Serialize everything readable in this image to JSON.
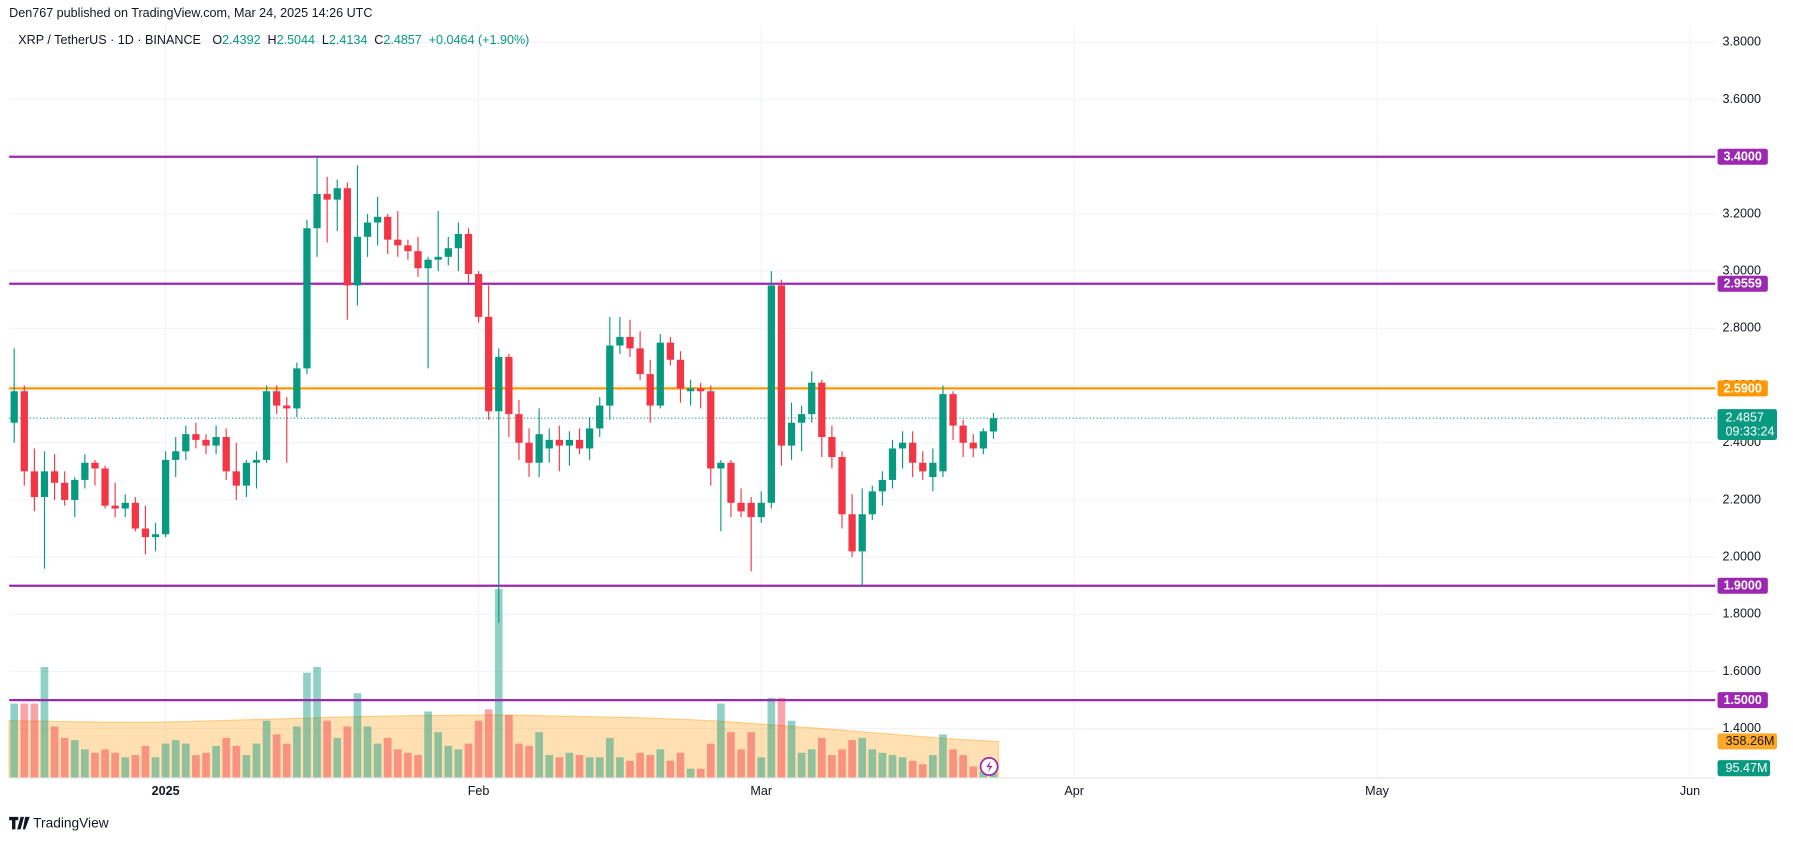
{
  "header": "Den767 published on TradingView.com, Mar 24, 2025 14:26 UTC",
  "logo": "TradingView",
  "chart_data": {
    "type": "candlestick",
    "title": "XRP / TetherUS · 1D · BINANCE",
    "legend_keys": [
      "O",
      "H",
      "L",
      "C"
    ],
    "change": "+0.0464 (+1.90%)",
    "countdown": "09:33:24",
    "categories": [
      null,
      null,
      null,
      null,
      null,
      null,
      null,
      null,
      null,
      null,
      null,
      null,
      null,
      null,
      null,
      "2025",
      null,
      null,
      null,
      null,
      null,
      null,
      null,
      null,
      null,
      null,
      null,
      null,
      null,
      null,
      null,
      null,
      null,
      null,
      null,
      null,
      null,
      null,
      null,
      null,
      null,
      null,
      null,
      null,
      null,
      null,
      "Feb",
      null,
      null,
      null,
      null,
      null,
      null,
      null,
      null,
      null,
      null,
      null,
      null,
      null,
      null,
      null,
      null,
      null,
      null,
      null,
      null,
      null,
      null,
      null,
      null,
      null,
      null,
      null,
      "Mar",
      null,
      null,
      null,
      null,
      null,
      null,
      null,
      null,
      null,
      null,
      null,
      null,
      null,
      null,
      null,
      null,
      null,
      null,
      null,
      null,
      null,
      null,
      null,
      null,
      null,
      null,
      null,
      null,
      null,
      null,
      "Apr",
      null,
      null,
      null,
      null,
      null,
      null,
      null,
      null,
      null,
      null,
      null,
      null,
      null,
      null,
      null,
      null,
      null,
      null,
      null,
      null,
      null,
      null,
      null,
      null,
      null,
      null,
      null,
      null,
      null,
      "May",
      null,
      null,
      null,
      null,
      null,
      null,
      null,
      null,
      null,
      null,
      null,
      null,
      null,
      null,
      null,
      null,
      null,
      null,
      null,
      null,
      null,
      null,
      null,
      null,
      null,
      null,
      null,
      null,
      null,
      null,
      "Jun",
      null,
      null
    ],
    "open": [
      2.47,
      2.58,
      2.3,
      2.21,
      2.3,
      2.26,
      2.2,
      2.27,
      2.33,
      2.31,
      2.18,
      2.17,
      2.19,
      2.1,
      2.07,
      2.08,
      2.34,
      2.37,
      2.43,
      2.41,
      2.39,
      2.42,
      2.3,
      2.25,
      2.33,
      2.34,
      2.58,
      2.53,
      2.52,
      2.66,
      3.15,
      3.27,
      3.25,
      3.29,
      2.95,
      3.12,
      3.17,
      3.19,
      3.11,
      3.09,
      3.07,
      3.01,
      3.04,
      3.05,
      3.08,
      3.13,
      2.99,
      2.84,
      2.51,
      2.7,
      2.5,
      2.4,
      2.33,
      2.38,
      2.41,
      2.39,
      2.41,
      2.38,
      2.45,
      2.53,
      2.74,
      2.77,
      2.73,
      2.64,
      2.53,
      2.75,
      2.69,
      2.58,
      2.59,
      2.58,
      2.31,
      2.33,
      2.19,
      2.19,
      2.14,
      2.19,
      2.95,
      2.39,
      2.47,
      2.5,
      2.61,
      2.42,
      2.35,
      2.15,
      2.02,
      2.15,
      2.23,
      2.27,
      2.38,
      2.4,
      2.33,
      2.28,
      2.3,
      2.57,
      2.46,
      2.4,
      2.38,
      2.4392,
      null,
      null,
      null,
      null,
      null,
      null,
      null,
      null,
      null,
      null,
      null,
      null,
      null,
      null,
      null,
      null,
      null,
      null,
      null,
      null,
      null,
      null,
      null,
      null,
      null,
      null,
      null,
      null,
      null,
      null,
      null,
      null,
      null,
      null,
      null,
      null,
      null,
      null,
      null,
      null,
      null,
      null,
      null,
      null,
      null,
      null,
      null,
      null,
      null,
      null,
      null,
      null,
      null,
      null,
      null,
      null,
      null,
      null,
      null,
      null,
      null,
      null,
      null,
      null,
      null,
      null,
      null,
      null,
      null,
      null,
      null
    ],
    "high": [
      2.73,
      2.6,
      2.38,
      2.37,
      2.36,
      2.3,
      2.28,
      2.36,
      2.34,
      2.32,
      2.26,
      2.22,
      2.21,
      2.18,
      2.12,
      2.37,
      2.42,
      2.46,
      2.47,
      2.43,
      2.46,
      2.45,
      2.4,
      2.34,
      2.37,
      2.6,
      2.6,
      2.56,
      2.68,
      3.18,
      3.4,
      3.33,
      3.32,
      3.31,
      3.37,
      3.2,
      3.26,
      3.2,
      3.21,
      3.11,
      3.12,
      3.05,
      3.21,
      3.12,
      3.17,
      3.15,
      3.0,
      2.95,
      2.73,
      2.71,
      2.55,
      2.45,
      2.52,
      2.45,
      2.46,
      2.44,
      2.45,
      2.49,
      2.56,
      2.84,
      2.84,
      2.83,
      2.79,
      2.69,
      2.78,
      2.77,
      2.72,
      2.62,
      2.61,
      2.6,
      2.34,
      2.34,
      2.24,
      2.21,
      2.23,
      3.0,
      2.97,
      2.54,
      2.53,
      2.65,
      2.62,
      2.46,
      2.37,
      2.22,
      2.24,
      2.25,
      2.3,
      2.41,
      2.44,
      2.44,
      2.37,
      2.38,
      2.6,
      2.58,
      2.48,
      2.43,
      2.45,
      2.5044,
      null,
      null,
      null,
      null,
      null,
      null,
      null,
      null,
      null,
      null,
      null,
      null,
      null,
      null,
      null,
      null,
      null,
      null,
      null,
      null,
      null,
      null,
      null,
      null,
      null,
      null,
      null,
      null,
      null,
      null,
      null,
      null,
      null,
      null,
      null,
      null,
      null,
      null,
      null,
      null,
      null,
      null,
      null,
      null,
      null,
      null,
      null,
      null,
      null,
      null,
      null,
      null,
      null,
      null,
      null,
      null,
      null,
      null,
      null,
      null,
      null,
      null,
      null,
      null,
      null,
      null,
      null,
      null,
      null,
      null,
      null
    ],
    "low": [
      2.4,
      2.25,
      2.16,
      1.96,
      2.2,
      2.18,
      2.14,
      2.24,
      2.25,
      2.17,
      2.14,
      2.14,
      2.09,
      2.01,
      2.02,
      2.07,
      2.28,
      2.34,
      2.38,
      2.36,
      2.36,
      2.27,
      2.2,
      2.21,
      2.24,
      2.33,
      2.5,
      2.33,
      2.49,
      2.64,
      3.05,
      3.1,
      3.14,
      2.83,
      2.88,
      3.05,
      3.09,
      3.06,
      3.05,
      3.04,
      2.98,
      2.66,
      3.0,
      3.02,
      3.0,
      2.96,
      2.82,
      2.48,
      1.77,
      2.42,
      2.34,
      2.28,
      2.28,
      2.33,
      2.3,
      2.32,
      2.36,
      2.34,
      2.42,
      2.48,
      2.71,
      2.7,
      2.62,
      2.47,
      2.52,
      2.67,
      2.54,
      2.53,
      2.52,
      2.25,
      2.09,
      2.14,
      2.14,
      1.95,
      2.12,
      2.17,
      2.32,
      2.34,
      2.37,
      2.47,
      2.35,
      2.31,
      2.1,
      2.0,
      1.9,
      2.13,
      2.18,
      2.24,
      2.31,
      2.28,
      2.27,
      2.23,
      2.28,
      2.41,
      2.35,
      2.35,
      2.36,
      2.4134,
      null,
      null,
      null,
      null,
      null,
      null,
      null,
      null,
      null,
      null,
      null,
      null,
      null,
      null,
      null,
      null,
      null,
      null,
      null,
      null,
      null,
      null,
      null,
      null,
      null,
      null,
      null,
      null,
      null,
      null,
      null,
      null,
      null,
      null,
      null,
      null,
      null,
      null,
      null,
      null,
      null,
      null,
      null,
      null,
      null,
      null,
      null,
      null,
      null,
      null,
      null,
      null,
      null,
      null,
      null,
      null,
      null,
      null,
      null,
      null,
      null,
      null,
      null,
      null,
      null,
      null,
      null,
      null,
      null,
      null,
      null
    ],
    "close": [
      2.58,
      2.3,
      2.21,
      2.3,
      2.26,
      2.2,
      2.27,
      2.33,
      2.31,
      2.18,
      2.17,
      2.19,
      2.1,
      2.07,
      2.08,
      2.34,
      2.37,
      2.43,
      2.41,
      2.39,
      2.42,
      2.3,
      2.25,
      2.33,
      2.34,
      2.58,
      2.53,
      2.52,
      2.66,
      3.15,
      3.27,
      3.25,
      3.29,
      2.95,
      3.12,
      3.17,
      3.19,
      3.11,
      3.09,
      3.07,
      3.01,
      3.04,
      3.05,
      3.08,
      3.13,
      2.99,
      2.84,
      2.51,
      2.7,
      2.5,
      2.4,
      2.33,
      2.43,
      2.41,
      2.39,
      2.41,
      2.38,
      2.45,
      2.53,
      2.74,
      2.77,
      2.73,
      2.64,
      2.53,
      2.75,
      2.69,
      2.59,
      2.59,
      2.58,
      2.31,
      2.33,
      2.19,
      2.16,
      2.14,
      2.19,
      2.95,
      2.39,
      2.47,
      2.5,
      2.61,
      2.42,
      2.35,
      2.15,
      2.02,
      2.15,
      2.23,
      2.27,
      2.38,
      2.4,
      2.33,
      2.3,
      2.33,
      2.57,
      2.46,
      2.4,
      2.38,
      2.44,
      2.4857,
      null,
      null,
      null,
      null,
      null,
      null,
      null,
      null,
      null,
      null,
      null,
      null,
      null,
      null,
      null,
      null,
      null,
      null,
      null,
      null,
      null,
      null,
      null,
      null,
      null,
      null,
      null,
      null,
      null,
      null,
      null,
      null,
      null,
      null,
      null,
      null,
      null,
      null,
      null,
      null,
      null,
      null,
      null,
      null,
      null,
      null,
      null,
      null,
      null,
      null,
      null,
      null,
      null,
      null,
      null,
      null,
      null,
      null,
      null,
      null,
      null,
      null,
      null,
      null,
      null,
      null,
      null,
      null,
      null,
      null,
      null
    ],
    "up_color": "#089981",
    "down_color": "#f23645",
    "ylim": [
      1.228,
      3.86
    ],
    "yticks": [
      {
        "value": 1.4,
        "label": "1.4000"
      },
      {
        "value": 1.6,
        "label": "1.6000"
      },
      {
        "value": 1.8,
        "label": "1.8000"
      },
      {
        "value": 2.0,
        "label": "2.0000"
      },
      {
        "value": 2.2,
        "label": "2.2000"
      },
      {
        "value": 2.4,
        "label": "2.4000"
      },
      {
        "value": 2.6,
        "label": "2.6000"
      },
      {
        "value": 2.8,
        "label": "2.8000"
      },
      {
        "value": 3.0,
        "label": "3.0000"
      },
      {
        "value": 3.2,
        "label": "3.2000"
      },
      {
        "value": 3.4,
        "label": "3.4000"
      },
      {
        "value": 3.6,
        "label": "3.6000"
      },
      {
        "value": 3.8,
        "label": "3.8000"
      }
    ],
    "grid": true,
    "levels": [
      {
        "value": 3.4,
        "label": "3.4000",
        "color": "#9c27b0"
      },
      {
        "value": 2.9559,
        "label": "2.9559",
        "color": "#9c27b0"
      },
      {
        "value": 2.59,
        "label": "2.5900",
        "color": "#ff9800"
      },
      {
        "value": 1.9,
        "label": "1.9000",
        "color": "#9c27b0"
      },
      {
        "value": 1.5,
        "label": "1.5000",
        "color": "#9c27b0"
      }
    ],
    "volume": {
      "values": [
        728,
        728,
        728,
        1086,
        504,
        392,
        370,
        280,
        246,
        280,
        246,
        202,
        224,
        314,
        202,
        336,
        370,
        336,
        224,
        246,
        314,
        392,
        314,
        224,
        336,
        560,
        426,
        336,
        504,
        1030,
        1086,
        560,
        392,
        504,
        829,
        504,
        336,
        392,
        280,
        246,
        224,
        650,
        448,
        314,
        280,
        336,
        560,
        672,
        1848,
        616,
        336,
        314,
        448,
        224,
        202,
        246,
        224,
        202,
        202,
        392,
        202,
        168,
        246,
        224,
        280,
        168,
        246,
        90,
        90,
        336,
        728,
        448,
        280,
        448,
        202,
        784,
        784,
        560,
        246,
        280,
        392,
        224,
        280,
        370,
        392,
        280,
        246,
        224,
        202,
        168,
        134,
        224,
        426,
        280,
        224,
        112,
        67,
        95.47,
        null,
        null,
        null,
        null,
        null,
        null,
        null,
        null,
        null,
        null,
        null,
        null,
        null,
        null,
        null,
        null,
        null,
        null,
        null,
        null,
        null,
        null,
        null,
        null,
        null,
        null,
        null,
        null,
        null,
        null,
        null,
        null,
        null,
        null,
        null,
        null,
        null,
        null,
        null,
        null,
        null,
        null,
        null,
        null,
        null,
        null,
        null,
        null,
        null,
        null,
        null,
        null,
        null,
        null,
        null,
        null,
        null,
        null,
        null,
        null,
        null,
        null,
        null,
        null,
        null,
        null,
        null,
        null,
        null,
        null,
        null
      ],
      "last_label": "95.47M"
    },
    "volume_ma": {
      "values": [
        560,
        558,
        556,
        555,
        553,
        552,
        550,
        549,
        548,
        547,
        546,
        545,
        545,
        545,
        546,
        548,
        550,
        552,
        555,
        558,
        560,
        563,
        566,
        569,
        572,
        575,
        578,
        580,
        583,
        586,
        590,
        593,
        596,
        598,
        600,
        602,
        604,
        606,
        608,
        609,
        610,
        611,
        612,
        613,
        614,
        615,
        615,
        616,
        616,
        615,
        614,
        612,
        610,
        608,
        606,
        604,
        602,
        600,
        598,
        596,
        594,
        591,
        588,
        585,
        582,
        578,
        574,
        570,
        565,
        560,
        555,
        548,
        541,
        534,
        527,
        520,
        512,
        505,
        498,
        491,
        484,
        476,
        468,
        460,
        452,
        444,
        436,
        428,
        420,
        412,
        404,
        396,
        389,
        382,
        376,
        370,
        364,
        358.26,
        null,
        null,
        null,
        null,
        null,
        null,
        null,
        null,
        null,
        null,
        null,
        null,
        null,
        null,
        null,
        null,
        null,
        null,
        null,
        null,
        null,
        null,
        null,
        null,
        null,
        null,
        null,
        null,
        null,
        null,
        null,
        null,
        null,
        null,
        null,
        null,
        null,
        null,
        null,
        null,
        null,
        null,
        null,
        null,
        null,
        null,
        null,
        null,
        null,
        null,
        null,
        null,
        null,
        null,
        null,
        null,
        null,
        null,
        null,
        null,
        null,
        null,
        null,
        null,
        null,
        null,
        null,
        null,
        null,
        null,
        null
      ],
      "last_label": "358.26M",
      "color": "#ff9800"
    }
  }
}
